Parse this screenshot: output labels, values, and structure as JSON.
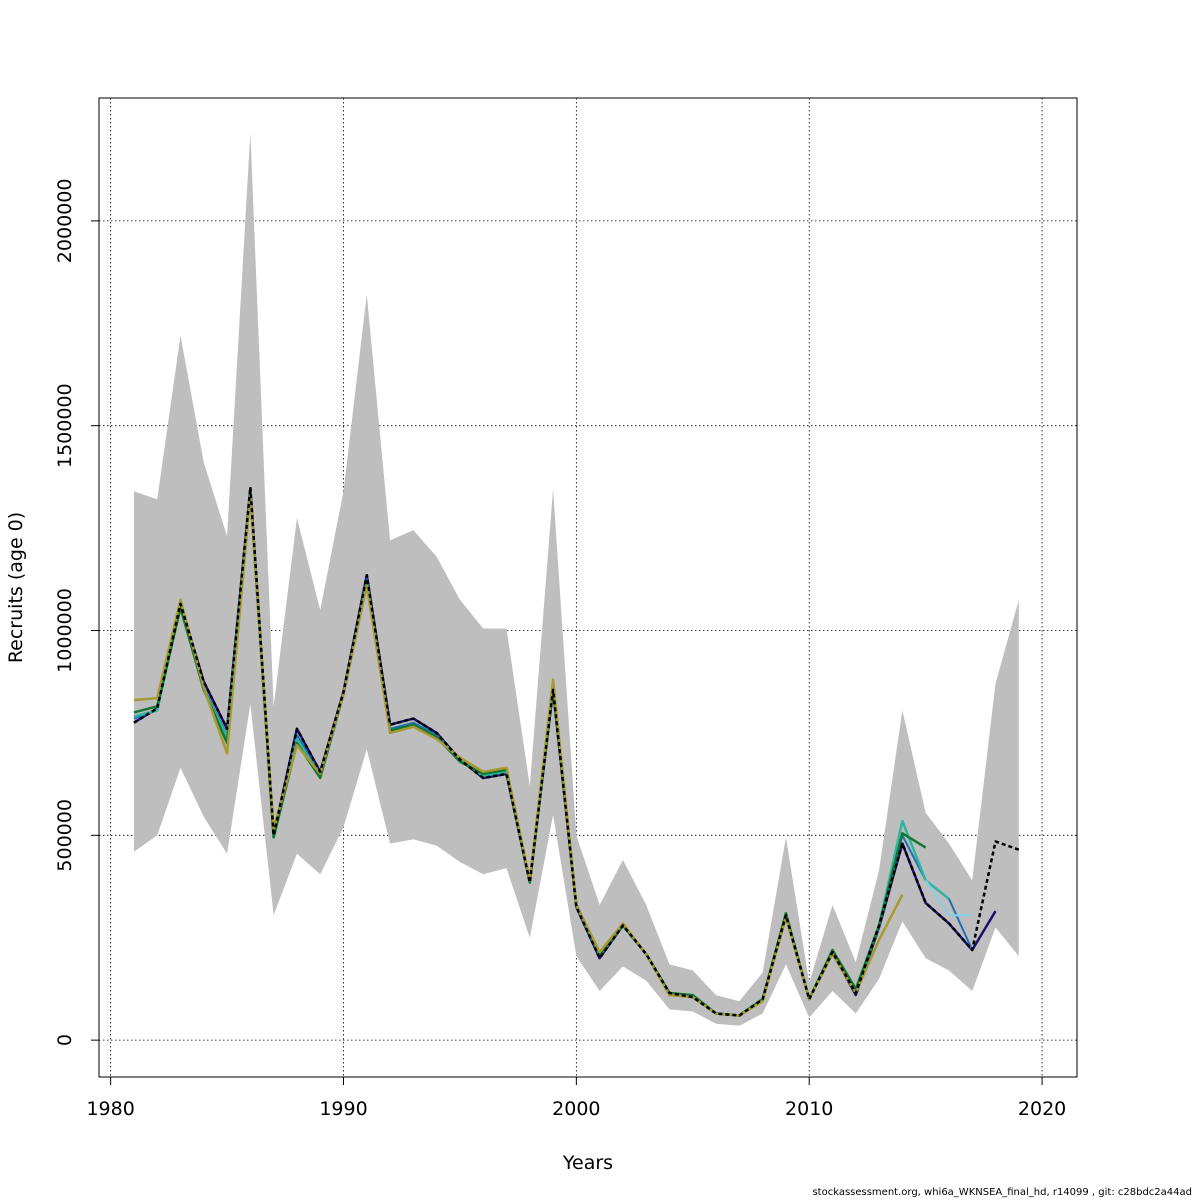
{
  "chart_data": {
    "type": "line",
    "title": "",
    "xlabel": "Years",
    "ylabel": "Recruits (age 0)",
    "xlim": [
      1979.5,
      2021.5
    ],
    "ylim": [
      -90000,
      2300000
    ],
    "xticks": [
      1980,
      1990,
      2000,
      2010,
      2020
    ],
    "yticks": [
      0,
      500000,
      1000000,
      1500000,
      2000000
    ],
    "xtick_labels": [
      "1980",
      "1990",
      "2000",
      "2010",
      "2020"
    ],
    "ytick_labels": [
      "0",
      "500000",
      "1000000",
      "1500000",
      "2000000"
    ],
    "grid": true,
    "band_color": "#bebebe",
    "confidence_band": {
      "x": [
        1981,
        1982,
        1983,
        1984,
        1985,
        1986,
        1987,
        1988,
        1989,
        1990,
        1991,
        1992,
        1993,
        1994,
        1995,
        1996,
        1997,
        1998,
        1999,
        2000,
        2001,
        2002,
        2003,
        2004,
        2005,
        2006,
        2007,
        2008,
        2009,
        2010,
        2011,
        2012,
        2013,
        2014,
        2015,
        2016,
        2017,
        2018,
        2019
      ],
      "upper": [
        1340000,
        1320000,
        1720000,
        1410000,
        1230000,
        2215000,
        815000,
        1275000,
        1050000,
        1340000,
        1820000,
        1220000,
        1245000,
        1180000,
        1075000,
        1005000,
        1005000,
        620000,
        1345000,
        500000,
        330000,
        440000,
        330000,
        185000,
        170000,
        110000,
        95000,
        165000,
        495000,
        140000,
        330000,
        190000,
        415000,
        805000,
        555000,
        480000,
        390000,
        870000,
        1075000
      ],
      "lower": [
        460000,
        500000,
        665000,
        545000,
        455000,
        820000,
        305000,
        455000,
        405000,
        520000,
        710000,
        480000,
        490000,
        475000,
        435000,
        405000,
        420000,
        250000,
        550000,
        205000,
        120000,
        180000,
        145000,
        75000,
        70000,
        40000,
        35000,
        65000,
        185000,
        55000,
        120000,
        65000,
        150000,
        290000,
        200000,
        170000,
        120000,
        275000,
        205000
      ]
    },
    "series": [
      {
        "color": "#000000",
        "dashed": true,
        "width": 2.5,
        "x": [
          1981,
          1982,
          1983,
          1984,
          1985,
          1986,
          1987,
          1988,
          1989,
          1990,
          1991,
          1992,
          1993,
          1994,
          1995,
          1996,
          1997,
          1998,
          1999,
          2000,
          2001,
          2002,
          2003,
          2004,
          2005,
          2006,
          2007,
          2008,
          2009,
          2010,
          2011,
          2012,
          2013,
          2014,
          2015,
          2016,
          2017,
          2018,
          2019
        ],
        "values": [
          775000,
          810000,
          1065000,
          875000,
          760000,
          1350000,
          500000,
          760000,
          655000,
          850000,
          1135000,
          770000,
          785000,
          750000,
          685000,
          640000,
          650000,
          385000,
          855000,
          325000,
          200000,
          280000,
          210000,
          115000,
          105000,
          65000,
          60000,
          100000,
          305000,
          100000,
          215000,
          115000,
          280000,
          480000,
          335000,
          285000,
          220000,
          485000,
          465000
        ]
      },
      {
        "color": "#87ceeb",
        "dashed": false,
        "width": 2,
        "x": [
          2015,
          2016,
          2017
        ],
        "values": [
          390000,
          305000,
          305000
        ]
      },
      {
        "color": "#1a0f6e",
        "dashed": false,
        "width": 2.5,
        "x": [
          1981,
          1982,
          1983,
          1984,
          1985,
          1986,
          1987,
          1988,
          1989,
          1990,
          1991,
          1992,
          1993,
          1994,
          1995,
          1996,
          1997,
          1998,
          1999,
          2000,
          2001,
          2002,
          2003,
          2004,
          2005,
          2006,
          2007,
          2008,
          2009,
          2010,
          2011,
          2012,
          2013,
          2014,
          2015,
          2016,
          2017,
          2018
        ],
        "values": [
          775000,
          810000,
          1065000,
          875000,
          760000,
          1345000,
          500000,
          760000,
          655000,
          850000,
          1135000,
          770000,
          785000,
          750000,
          685000,
          640000,
          650000,
          385000,
          855000,
          325000,
          200000,
          280000,
          210000,
          115000,
          105000,
          65000,
          60000,
          100000,
          305000,
          100000,
          215000,
          110000,
          275000,
          480000,
          335000,
          285000,
          220000,
          315000
        ]
      },
      {
        "color": "#1f6fb4",
        "dashed": false,
        "width": 2,
        "x": [
          1981,
          1982,
          1983,
          1984,
          1985,
          1986,
          1987,
          1988,
          1989,
          1990,
          1991,
          1992,
          1993,
          1994,
          1995,
          1996,
          1997,
          1998,
          1999,
          2000,
          2001,
          2002,
          2003,
          2004,
          2005,
          2006,
          2007,
          2008,
          2009,
          2010,
          2011,
          2012,
          2013,
          2014,
          2015,
          2016,
          2017
        ],
        "values": [
          785000,
          805000,
          1060000,
          860000,
          745000,
          1340000,
          495000,
          745000,
          650000,
          845000,
          1125000,
          760000,
          775000,
          745000,
          685000,
          645000,
          655000,
          385000,
          860000,
          325000,
          205000,
          280000,
          210000,
          115000,
          105000,
          65000,
          60000,
          100000,
          305000,
          100000,
          220000,
          115000,
          275000,
          500000,
          390000,
          345000,
          220000
        ]
      },
      {
        "color": "#2cb5a0",
        "dashed": false,
        "width": 2.5,
        "x": [
          1981,
          1982,
          1983,
          1984,
          1985,
          1986,
          1987,
          1988,
          1989,
          1990,
          1991,
          1992,
          1993,
          1994,
          1995,
          1996,
          1997,
          1998,
          1999,
          2000,
          2001,
          2002,
          2003,
          2004,
          2005,
          2006,
          2007,
          2008,
          2009,
          2010,
          2011,
          2012,
          2013,
          2014,
          2015,
          2016
        ],
        "values": [
          790000,
          805000,
          1060000,
          855000,
          740000,
          1335000,
          495000,
          735000,
          645000,
          845000,
          1120000,
          755000,
          770000,
          740000,
          685000,
          645000,
          655000,
          385000,
          860000,
          330000,
          210000,
          280000,
          210000,
          115000,
          105000,
          65000,
          60000,
          100000,
          305000,
          100000,
          220000,
          120000,
          280000,
          535000,
          390000,
          345000
        ]
      },
      {
        "color": "#117733",
        "dashed": false,
        "width": 2.5,
        "x": [
          1981,
          1982,
          1983,
          1984,
          1985,
          1986,
          1987,
          1988,
          1989,
          1990,
          1991,
          1992,
          1993,
          1994,
          1995,
          1996,
          1997,
          1998,
          1999,
          2000,
          2001,
          2002,
          2003,
          2004,
          2005,
          2006,
          2007,
          2008,
          2009,
          2010,
          2011,
          2012,
          2013,
          2014,
          2015
        ],
        "values": [
          800000,
          815000,
          1055000,
          855000,
          725000,
          1335000,
          495000,
          725000,
          640000,
          845000,
          1115000,
          755000,
          770000,
          740000,
          680000,
          650000,
          660000,
          385000,
          860000,
          330000,
          210000,
          280000,
          210000,
          115000,
          110000,
          65000,
          60000,
          100000,
          310000,
          100000,
          220000,
          125000,
          280000,
          505000,
          470000
        ]
      },
      {
        "color": "#a69a30",
        "dashed": false,
        "width": 2.5,
        "x": [
          1981,
          1982,
          1983,
          1984,
          1985,
          1986,
          1987,
          1988,
          1989,
          1990,
          1991,
          1992,
          1993,
          1994,
          1995,
          1996,
          1997,
          1998,
          1999,
          2000,
          2001,
          2002,
          2003,
          2004,
          2005,
          2006,
          2007,
          2008,
          2009,
          2010,
          2011,
          2012,
          2013,
          2014
        ],
        "values": [
          830000,
          835000,
          1075000,
          860000,
          700000,
          1330000,
          515000,
          720000,
          650000,
          845000,
          1110000,
          750000,
          765000,
          735000,
          690000,
          655000,
          665000,
          390000,
          880000,
          330000,
          215000,
          285000,
          210000,
          110000,
          105000,
          65000,
          60000,
          95000,
          300000,
          100000,
          210000,
          115000,
          245000,
          355000
        ]
      }
    ]
  },
  "footer": "stockassessment.org, whi6a_WKNSEA_final_hd, r14099 , git: c28bdc2a44ad"
}
